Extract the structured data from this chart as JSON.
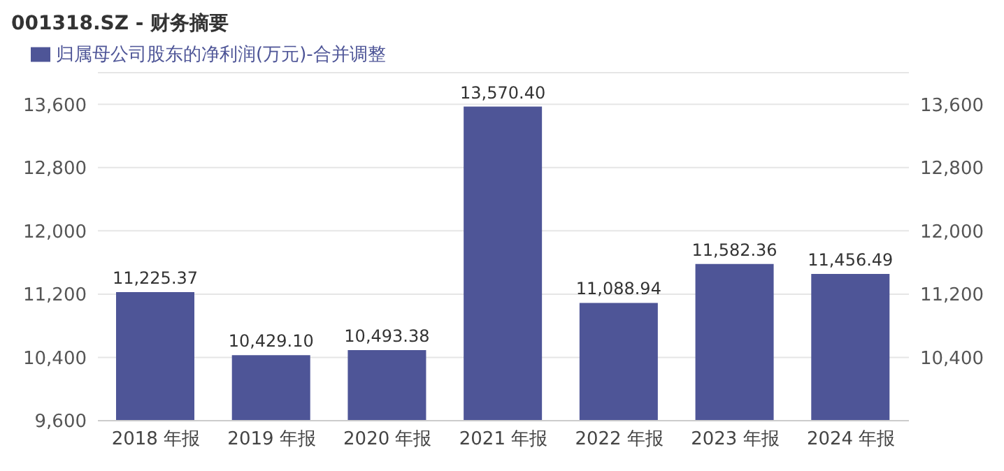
{
  "chart_data": {
    "type": "bar",
    "title": "001318.SZ - 财务摘要",
    "categories": [
      "2018 年报",
      "2019 年报",
      "2020 年报",
      "2021 年报",
      "2022 年报",
      "2023 年报",
      "2024 年报"
    ],
    "series": [
      {
        "name": "归属母公司股东的净利润(万元)-合并调整",
        "color": "#4e5597",
        "values": [
          11225.37,
          10429.1,
          10493.38,
          13570.4,
          11088.94,
          11582.36,
          11456.49
        ]
      }
    ],
    "ylim": [
      9600,
      14000
    ],
    "yticks": [
      {
        "value": 9600,
        "label": "9,600"
      },
      {
        "value": 10400,
        "label": "10,400"
      },
      {
        "value": 11200,
        "label": "11,200"
      },
      {
        "value": 12000,
        "label": "12,000"
      },
      {
        "value": 12800,
        "label": "12,800"
      },
      {
        "value": 13600,
        "label": "13,600"
      }
    ],
    "y2lim": [
      9600,
      14000
    ],
    "y2ticks": [
      {
        "value": 10400,
        "label": "10,400"
      },
      {
        "value": 11200,
        "label": "11,200"
      },
      {
        "value": 12000,
        "label": "12,000"
      },
      {
        "value": 12800,
        "label": "12,800"
      },
      {
        "value": 13600,
        "label": "13,600"
      }
    ],
    "value_labels": [
      "11,225.37",
      "10,429.10",
      "10,493.38",
      "13,570.40",
      "11,088.94",
      "11,582.36",
      "11,456.49"
    ],
    "grid": "y",
    "legend": "top left"
  }
}
